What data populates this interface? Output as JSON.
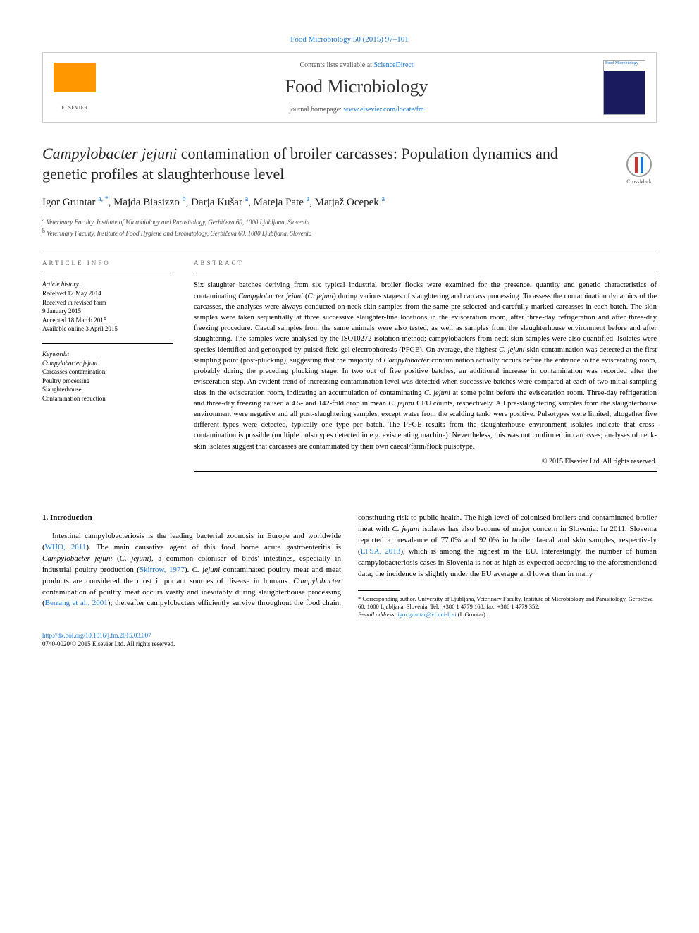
{
  "header": {
    "citation": "Food Microbiology 50 (2015) 97–101",
    "contents_prefix": "Contents lists available at ",
    "contents_link": "ScienceDirect",
    "journal": "Food Microbiology",
    "homepage_prefix": "journal homepage: ",
    "homepage_link": "www.elsevier.com/locate/fm",
    "cover_label": "Food Microbiology"
  },
  "crossmark": {
    "label": "CrossMark"
  },
  "title": {
    "italic_part": "Campylobacter jejuni",
    "rest": " contamination of broiler carcasses: Population dynamics and genetic profiles at slaughterhouse level"
  },
  "authors": [
    {
      "name": "Igor Gruntar ",
      "sup": "a, *"
    },
    {
      "name": ", Majda Biasizzo ",
      "sup": "b"
    },
    {
      "name": ", Darja Kušar ",
      "sup": "a"
    },
    {
      "name": ", Mateja Pate ",
      "sup": "a"
    },
    {
      "name": ", Matjaž Ocepek ",
      "sup": "a"
    }
  ],
  "affiliations": [
    {
      "sup": "a",
      "text": " Veterinary Faculty, Institute of Microbiology and Parasitology, Gerbičeva 60, 1000 Ljubljana, Slovenia"
    },
    {
      "sup": "b",
      "text": " Veterinary Faculty, Institute of Food Hygiene and Bromatology, Gerbičeva 60, 1000 Ljubljana, Slovenia"
    }
  ],
  "info": {
    "label": "ARTICLE INFO",
    "history_label": "Article history:",
    "history": [
      "Received 12 May 2014",
      "Received in revised form",
      "9 January 2015",
      "Accepted 18 March 2015",
      "Available online 3 April 2015"
    ],
    "keywords_label": "Keywords:",
    "keywords": [
      "Campylobacter jejuni",
      "Carcasses contamination",
      "Poultry processing",
      "Slaughterhouse",
      "Contamination reduction"
    ]
  },
  "abstract": {
    "label": "ABSTRACT",
    "text_pre": "Six slaughter batches deriving from six typical industrial broiler flocks were examined for the presence, quantity and genetic characteristics of contaminating ",
    "species_full": "Campylobacter jejuni",
    "paren_open": " (",
    "species_short": "C. jejuni",
    "text_post": ") during various stages of slaughtering and carcass processing. To assess the contamination dynamics of the carcasses, the analyses were always conducted on neck-skin samples from the same pre-selected and carefully marked carcasses in each batch. The skin samples were taken sequentially at three successive slaughter-line locations in the evisceration room, after three-day refrigeration and after three-day freezing procedure. Caecal samples from the same animals were also tested, as well as samples from the slaughterhouse environment before and after slaughtering. The samples were analysed by the ISO10272 isolation method; campylobacters from neck-skin samples were also quantified. Isolates were species-identified and genotyped by pulsed-field gel electrophoresis (PFGE). On average, the highest ",
    "cj1": "C. jejuni",
    "text_mid1": " skin contamination was detected at the first sampling point (post-plucking), suggesting that the majority of ",
    "campy": "Campylobacter",
    "text_mid2": " contamination actually occurs before the entrance to the eviscerating room, probably during the preceding plucking stage. In two out of five positive batches, an additional increase in contamination was recorded after the evisceration step. An evident trend of increasing contamination level was detected when successive batches were compared at each of two initial sampling sites in the evisceration room, indicating an accumulation of contaminating ",
    "cj2": "C. jejuni",
    "text_mid3": " at some point before the evisceration room. Three-day refrigeration and three-day freezing caused a 4.5- and 142-fold drop in mean ",
    "cj3": "C. jejuni",
    "text_end": " CFU counts, respectively. All pre-slaughtering samples from the slaughterhouse environment were negative and all post-slaughtering samples, except water from the scalding tank, were positive. Pulsotypes were limited; altogether five different types were detected, typically one type per batch. The PFGE results from the slaughterhouse environment isolates indicate that cross-contamination is possible (multiple pulsotypes detected in e.g. eviscerating machine). Nevertheless, this was not confirmed in carcasses; analyses of neck-skin isolates suggest that carcasses are contaminated by their own caecal/farm/flock pulsotype.",
    "copyright": "© 2015 Elsevier Ltd. All rights reserved."
  },
  "body": {
    "heading": "1. Introduction",
    "p1_a": "Intestinal campylobacteriosis is the leading bacterial zoonosis in Europe and worldwide (",
    "ref1": "WHO, 2011",
    "p1_b": "). The main causative agent of this food borne acute gastroenteritis is ",
    "cj_full": "Campylobacter jejuni",
    "p1_c": " (",
    "cj_short": "C. jejuni",
    "p1_d": "), a common coloniser of birds' intestines, especially in industrial poultry production (",
    "ref2": "Skirrow, 1977",
    "p1_e": "). ",
    "cj2": "C. jejuni",
    "p1_f": " contaminated poultry meat and meat products are considered the most important sources of disease in humans. ",
    "campy": "Campylobacter",
    "p1_g": " contamination of poultry meat occurs vastly and inevitably during slaughterhouse processing (",
    "ref3": "Berrang et al., 2001",
    "p1_h": "); thereafter campylobacters efficiently survive throughout the food chain, constituting risk to public health. The high level of colonised broilers and contaminated broiler meat with ",
    "cj3": "C. jejuni",
    "p1_i": " isolates has also become of major concern in Slovenia. In 2011, Slovenia reported a prevalence of 77.0% and 92.0% in broiler faecal and skin samples, respectively (",
    "ref4": "EFSA, 2013",
    "p1_j": "), which is among the highest in the EU. Interestingly, the number of human campylobacteriosis cases in Slovenia is not as high as expected according to the aforementioned data; the incidence is slightly under the EU average and lower than in many"
  },
  "footnotes": {
    "corr": "* Corresponding author. University of Ljubljana, Veterinary Faculty, Institute of Microbiology and Parasitology, Gerbičeva 60, 1000 Ljubljana, Slovenia. Tel.: +386 1 4779 168; fax: +386 1 4779 352.",
    "email_label": "E-mail address: ",
    "email": "igor.gruntar@vf.uni-lj.si",
    "email_who": " (I. Gruntar)."
  },
  "footer": {
    "doi": "http://dx.doi.org/10.1016/j.fm.2015.03.007",
    "issn": "0740-0020/© 2015 Elsevier Ltd. All rights reserved."
  }
}
